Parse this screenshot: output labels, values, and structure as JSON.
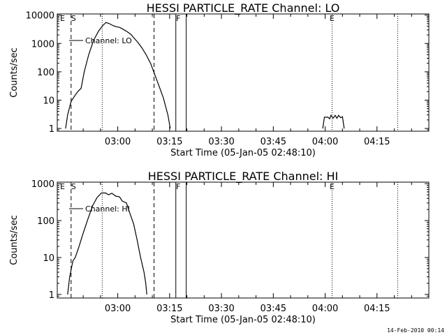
{
  "chart_data": [
    {
      "type": "line",
      "title": "HESSI PARTICLE_RATE Channel: LO",
      "xlabel": "Start Time (05-Jan-05 02:48:10)",
      "ylabel": "Counts/sec",
      "yscale": "log",
      "ylim": [
        0.8,
        11000
      ],
      "xlim_minutes": [
        -5.5,
        102
      ],
      "x_ticks": [
        "03:00",
        "03:15",
        "03:30",
        "03:45",
        "04:00",
        "04:15"
      ],
      "x_tick_minutes": [
        12,
        27,
        42,
        57,
        72,
        87
      ],
      "y_ticks": [
        "1",
        "10",
        "100",
        "1000",
        "10000"
      ],
      "y_tick_values": [
        1,
        10,
        100,
        1000,
        10000
      ],
      "legend": "Channel: LO",
      "series": [
        {
          "segments": [
            [
              [
                -3.1,
                1
              ],
              [
                -2.5,
                3
              ],
              [
                -1.5,
                9
              ],
              [
                0.0,
                17
              ],
              [
                0.6,
                21
              ],
              [
                1.4,
                26
              ],
              [
                2.3,
                100
              ],
              [
                3.6,
                400
              ],
              [
                5.0,
                1300
              ],
              [
                6.5,
                2800
              ],
              [
                7.6,
                4200
              ],
              [
                8.6,
                5500
              ],
              [
                9.6,
                5000
              ],
              [
                10.6,
                4300
              ],
              [
                11.6,
                3900
              ],
              [
                12.5,
                3700
              ],
              [
                13.5,
                3200
              ],
              [
                14.7,
                2600
              ],
              [
                15.8,
                2100
              ],
              [
                16.8,
                1500
              ],
              [
                17.8,
                1100
              ],
              [
                19.0,
                700
              ],
              [
                20.2,
                400
              ],
              [
                21.5,
                200
              ],
              [
                22.7,
                80
              ],
              [
                24.0,
                30
              ],
              [
                25.2,
                12
              ],
              [
                26.5,
                3
              ],
              [
                27.2,
                1
              ]
            ],
            [
              [
                71.3,
                1
              ],
              [
                71.8,
                2.5
              ],
              [
                72.8,
                2.5
              ],
              [
                73.3,
                2.2
              ],
              [
                73.7,
                2.9
              ],
              [
                74.3,
                2.3
              ],
              [
                74.9,
                2.9
              ],
              [
                75.4,
                2.3
              ],
              [
                75.9,
                2.9
              ],
              [
                76.5,
                2.4
              ],
              [
                77.0,
                2.6
              ],
              [
                77.5,
                1
              ]
            ]
          ]
        }
      ],
      "markers": {
        "solid_lines": [
          28.8,
          31.8
        ],
        "dashed_lines": [
          -1.5,
          22.5
        ],
        "dotted_lines": [
          7.5,
          74.0,
          93.0
        ],
        "labels": [
          {
            "text": "E",
            "minute": -4.0
          },
          {
            "text": "S",
            "minute": -0.8
          },
          {
            "text": "F",
            "minute": 29.5
          },
          {
            "text": "E",
            "minute": 74.0
          }
        ]
      }
    },
    {
      "type": "line",
      "title": "HESSI PARTICLE_RATE Channel: HI",
      "xlabel": "Start Time (05-Jan-05 02:48:10)",
      "ylabel": "Counts/sec",
      "yscale": "log",
      "ylim": [
        0.8,
        1100
      ],
      "xlim_minutes": [
        -5.5,
        102
      ],
      "x_ticks": [
        "03:00",
        "03:15",
        "03:30",
        "03:45",
        "04:00",
        "04:15"
      ],
      "x_tick_minutes": [
        12,
        27,
        42,
        57,
        72,
        87
      ],
      "y_ticks": [
        "1",
        "10",
        "100",
        "1000"
      ],
      "y_tick_values": [
        1,
        10,
        100,
        1000
      ],
      "legend": "Channel: HI",
      "series": [
        {
          "segments": [
            [
              [
                -2.5,
                1
              ],
              [
                -1.9,
                3
              ],
              [
                -1.0,
                8
              ],
              [
                -0.3,
                10
              ],
              [
                0.8,
                20
              ],
              [
                1.8,
                40
              ],
              [
                3.2,
                100
              ],
              [
                4.7,
                250
              ],
              [
                6.0,
                420
              ],
              [
                7.3,
                560
              ],
              [
                8.5,
                560
              ],
              [
                9.3,
                500
              ],
              [
                10.3,
                550
              ],
              [
                11.4,
                460
              ],
              [
                12.5,
                440
              ],
              [
                13.3,
                340
              ],
              [
                14.5,
                300
              ],
              [
                15.6,
                150
              ],
              [
                16.6,
                80
              ],
              [
                17.6,
                30
              ],
              [
                18.6,
                10
              ],
              [
                19.6,
                4
              ],
              [
                20.1,
                2
              ],
              [
                20.4,
                1
              ]
            ]
          ]
        }
      ],
      "markers": {
        "solid_lines": [
          28.8,
          31.8
        ],
        "dashed_lines": [
          -1.5,
          22.5
        ],
        "dotted_lines": [
          7.5,
          74.0,
          93.0
        ],
        "labels": [
          {
            "text": "E",
            "minute": -4.0
          },
          {
            "text": "S",
            "minute": -0.8
          },
          {
            "text": "F",
            "minute": 29.5
          },
          {
            "text": "E",
            "minute": 74.0
          }
        ]
      }
    }
  ],
  "footer": {
    "stamp": "14-Feb-2010 00:14"
  }
}
